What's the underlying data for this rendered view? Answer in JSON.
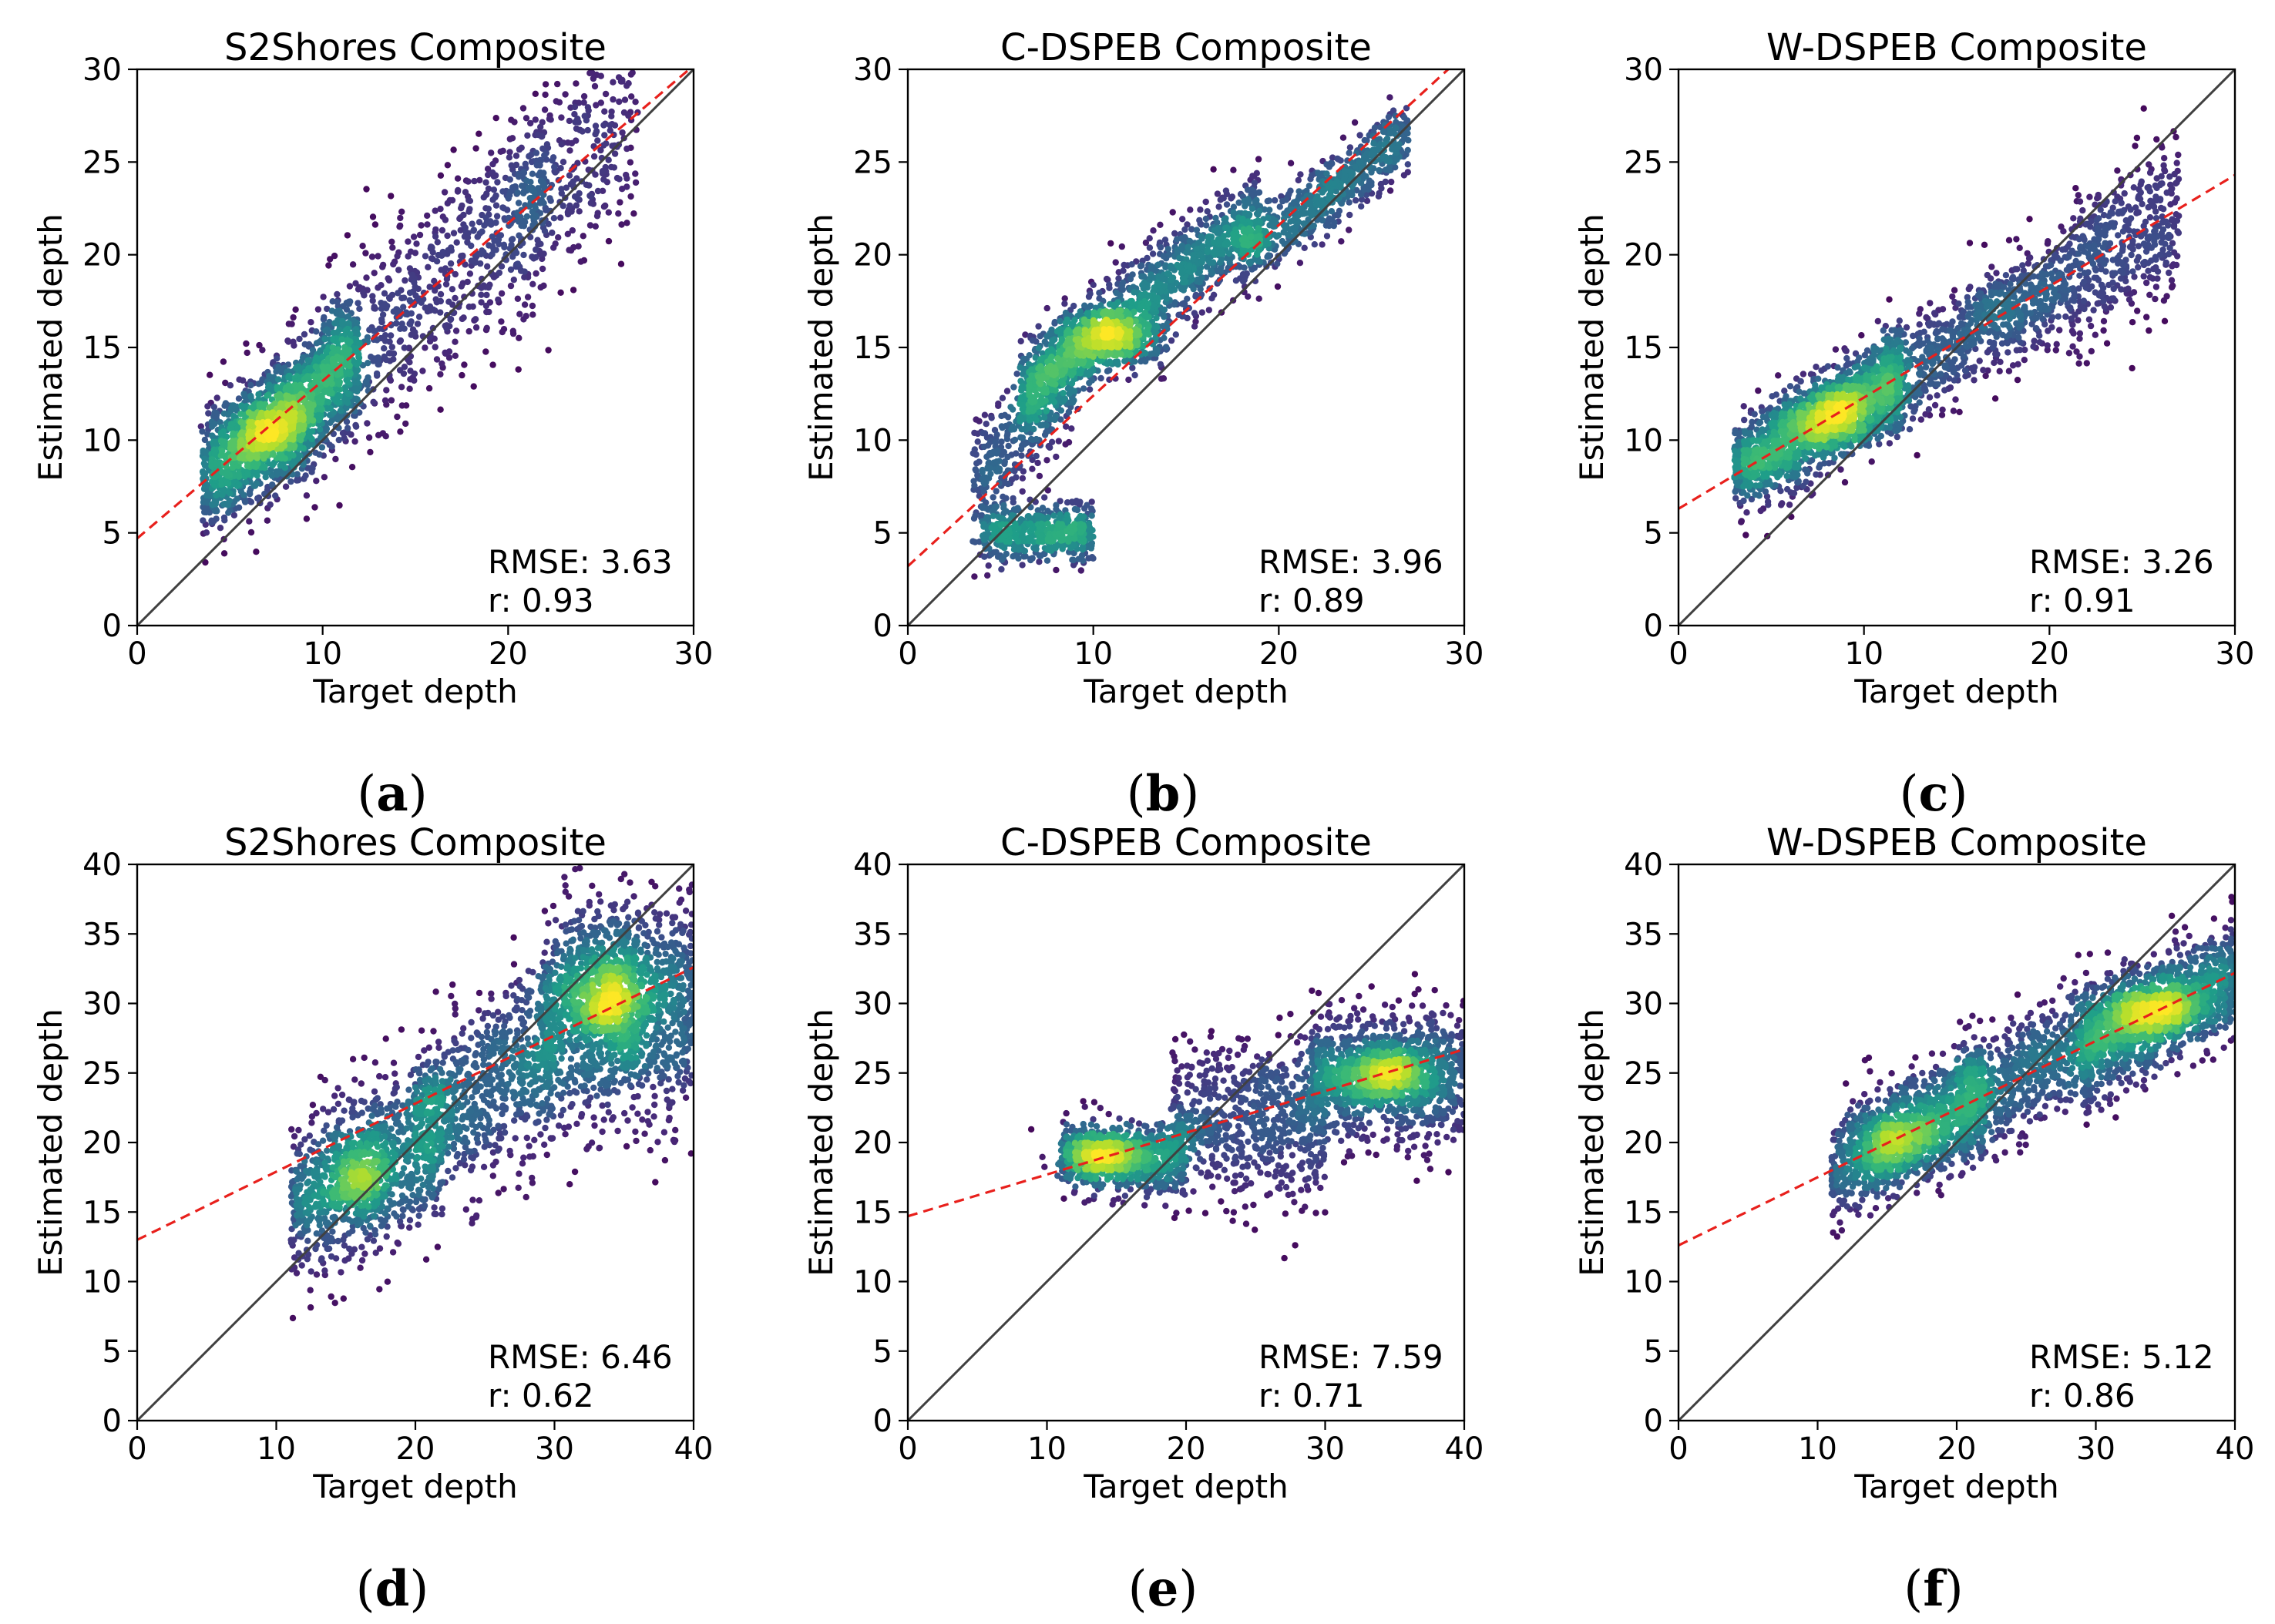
{
  "figure": {
    "panels": [
      {
        "caption": "(a)",
        "title": "S2Shores Composite",
        "rmse_label": "RMSE: 3.63",
        "r_label": "r: 0.93"
      },
      {
        "caption": "(b)",
        "title": "C-DSPEB Composite",
        "rmse_label": "RMSE: 3.96",
        "r_label": "r: 0.89"
      },
      {
        "caption": "(c)",
        "title": "W-DSPEB Composite",
        "rmse_label": "RMSE: 3.26",
        "r_label": "r: 0.91"
      },
      {
        "caption": "(d)",
        "title": "S2Shores Composite",
        "rmse_label": "RMSE: 6.46",
        "r_label": "r: 0.62"
      },
      {
        "caption": "(e)",
        "title": "C-DSPEB Composite",
        "rmse_label": "RMSE: 7.59",
        "r_label": "r: 0.71"
      },
      {
        "caption": "(f)",
        "title": "W-DSPEB Composite",
        "rmse_label": "RMSE: 5.12",
        "r_label": "r: 0.86"
      }
    ]
  },
  "colors": {
    "identity_line": "#404040",
    "fit_line": "#e8201c",
    "density_low": "#440154",
    "density_mid": "#21918c",
    "density_high": "#fde725"
  },
  "chart_data": [
    {
      "type": "scatter",
      "title": "S2Shores Composite",
      "xlabel": "Target depth",
      "ylabel": "Estimated depth",
      "xlim": [
        0,
        30
      ],
      "ylim": [
        0,
        30
      ],
      "xticks": [
        0,
        10,
        20,
        30
      ],
      "yticks": [
        0,
        5,
        10,
        15,
        20,
        25,
        30
      ],
      "identity_line": true,
      "fit_line": {
        "intercept": 4.7,
        "slope": 0.85
      },
      "rmse": 3.63,
      "r": 0.93,
      "clusters": [
        {
          "x": [
            3.5,
            12
          ],
          "intercept": 4.7,
          "slope": 0.85,
          "spread": 1.6,
          "n": 1400
        },
        {
          "x": [
            10,
            22
          ],
          "intercept": 4.7,
          "slope": 0.85,
          "spread": 2.6,
          "n": 700
        },
        {
          "x": [
            20,
            27
          ],
          "intercept": 4.7,
          "slope": 0.85,
          "spread": 3.0,
          "n": 350
        }
      ],
      "density_cores": [
        {
          "x": 7.5,
          "y": 10.5,
          "sx": 1.4,
          "sy": 1.3,
          "n": 500
        }
      ]
    },
    {
      "type": "scatter",
      "title": "C-DSPEB Composite",
      "xlabel": "Target depth",
      "ylabel": "Estimated depth",
      "xlim": [
        0,
        30
      ],
      "ylim": [
        0,
        30
      ],
      "xticks": [
        0,
        10,
        20,
        30
      ],
      "yticks": [
        0,
        5,
        10,
        15,
        20,
        25,
        30
      ],
      "identity_line": true,
      "fit_line": {
        "intercept": 3.2,
        "slope": 0.92
      },
      "rmse": 3.96,
      "r": 0.89,
      "clusters": [
        {
          "x": [
            4,
            10
          ],
          "intercept": 5.0,
          "slope": 0.0,
          "spread": 0.8,
          "n": 500
        },
        {
          "x": [
            3.5,
            9
          ],
          "intercept": 4.0,
          "slope": 1.05,
          "spread": 1.5,
          "n": 350
        },
        {
          "x": [
            6,
            19
          ],
          "intercept": 8.0,
          "slope": 0.75,
          "spread": 1.3,
          "n": 1300
        },
        {
          "x": [
            18,
            27
          ],
          "intercept": 7.0,
          "slope": 0.72,
          "spread": 1.0,
          "n": 600
        }
      ],
      "density_cores": [
        {
          "x": 11,
          "y": 15.5,
          "sx": 1.4,
          "sy": 0.8,
          "n": 450
        }
      ]
    },
    {
      "type": "scatter",
      "title": "W-DSPEB Composite",
      "xlabel": "Target depth",
      "ylabel": "Estimated depth",
      "xlim": [
        0,
        30
      ],
      "ylim": [
        0,
        30
      ],
      "xticks": [
        0,
        10,
        20,
        30
      ],
      "yticks": [
        0,
        5,
        10,
        15,
        20,
        25,
        30
      ],
      "identity_line": true,
      "fit_line": {
        "intercept": 6.3,
        "slope": 0.6
      },
      "rmse": 3.26,
      "r": 0.91,
      "clusters": [
        {
          "x": [
            3,
            12
          ],
          "intercept": 6.5,
          "slope": 0.58,
          "spread": 1.3,
          "n": 1500
        },
        {
          "x": [
            11,
            21
          ],
          "intercept": 6.3,
          "slope": 0.6,
          "spread": 1.4,
          "n": 800
        },
        {
          "x": [
            21,
            27
          ],
          "intercept": 6.0,
          "slope": 0.6,
          "spread": 2.2,
          "n": 450
        }
      ],
      "density_cores": [
        {
          "x": 8.5,
          "y": 11.3,
          "sx": 1.6,
          "sy": 0.9,
          "n": 500
        }
      ]
    },
    {
      "type": "scatter",
      "title": "S2Shores Composite",
      "xlabel": "Target depth",
      "ylabel": "Estimated depth",
      "xlim": [
        0,
        40
      ],
      "ylim": [
        0,
        40
      ],
      "xticks": [
        0,
        10,
        20,
        30,
        40
      ],
      "yticks": [
        0,
        5,
        10,
        15,
        20,
        25,
        30,
        35,
        40
      ],
      "identity_line": true,
      "fit_line": {
        "intercept": 13.0,
        "slope": 0.49
      },
      "rmse": 6.46,
      "r": 0.62,
      "clusters": [
        {
          "x": [
            11,
            22
          ],
          "intercept": 10.0,
          "slope": 0.5,
          "spread": 3.0,
          "n": 800
        },
        {
          "x": [
            20,
            30
          ],
          "intercept": 10.0,
          "slope": 0.55,
          "spread": 3.2,
          "n": 700
        },
        {
          "x": [
            29,
            40
          ],
          "intercept": 29.5,
          "slope": 0.0,
          "spread": 4.0,
          "n": 1200
        }
      ],
      "density_cores": [
        {
          "x": 16,
          "y": 17.5,
          "sx": 1.6,
          "sy": 1.8,
          "n": 350
        },
        {
          "x": 34,
          "y": 30.5,
          "sx": 1.6,
          "sy": 2.2,
          "n": 500
        }
      ]
    },
    {
      "type": "scatter",
      "title": "C-DSPEB Composite",
      "xlabel": "Target depth",
      "ylabel": "Estimated depth",
      "xlim": [
        0,
        40
      ],
      "ylim": [
        0,
        40
      ],
      "xticks": [
        0,
        10,
        20,
        30,
        40
      ],
      "yticks": [
        0,
        5,
        10,
        15,
        20,
        25,
        30,
        35,
        40
      ],
      "identity_line": true,
      "fit_line": {
        "intercept": 14.7,
        "slope": 0.3
      },
      "rmse": 7.59,
      "r": 0.71,
      "clusters": [
        {
          "x": [
            11,
            20
          ],
          "intercept": 19.0,
          "slope": 0.0,
          "spread": 1.3,
          "n": 700
        },
        {
          "x": [
            19,
            30
          ],
          "intercept": 21.5,
          "slope": 0.0,
          "spread": 2.8,
          "n": 700
        },
        {
          "x": [
            29,
            40
          ],
          "intercept": 25.0,
          "slope": 0.0,
          "spread": 2.3,
          "n": 1000
        }
      ],
      "density_cores": [
        {
          "x": 14,
          "y": 18.8,
          "sx": 1.5,
          "sy": 0.8,
          "n": 300
        },
        {
          "x": 34,
          "y": 24.8,
          "sx": 1.8,
          "sy": 1.0,
          "n": 450
        }
      ]
    },
    {
      "type": "scatter",
      "title": "W-DSPEB Composite",
      "xlabel": "Target depth",
      "ylabel": "Estimated depth",
      "xlim": [
        0,
        40
      ],
      "ylim": [
        0,
        40
      ],
      "xticks": [
        0,
        10,
        20,
        30,
        40
      ],
      "yticks": [
        0,
        5,
        10,
        15,
        20,
        25,
        30,
        35,
        40
      ],
      "identity_line": true,
      "fit_line": {
        "intercept": 12.6,
        "slope": 0.49
      },
      "rmse": 5.12,
      "r": 0.86,
      "clusters": [
        {
          "x": [
            11,
            22
          ],
          "intercept": 12.5,
          "slope": 0.5,
          "spread": 2.0,
          "n": 1000
        },
        {
          "x": [
            20,
            30
          ],
          "intercept": 12.5,
          "slope": 0.5,
          "spread": 2.2,
          "n": 700
        },
        {
          "x": [
            29,
            40
          ],
          "intercept": 12.5,
          "slope": 0.49,
          "spread": 2.0,
          "n": 1100
        }
      ],
      "density_cores": [
        {
          "x": 16,
          "y": 20.0,
          "sx": 1.8,
          "sy": 1.2,
          "n": 350
        },
        {
          "x": 34,
          "y": 29.5,
          "sx": 2.0,
          "sy": 1.2,
          "n": 500
        }
      ]
    }
  ]
}
